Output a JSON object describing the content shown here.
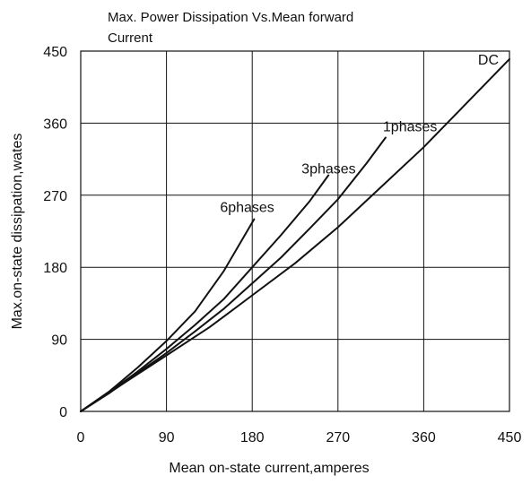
{
  "chart_data": {
    "type": "line",
    "title_lines": [
      "Max. Power Dissipation Vs.Mean forward",
      "Current"
    ],
    "xlabel": "Mean on-state current,amperes",
    "ylabel": "Max.on-state dissipation,wates",
    "xlim": [
      0,
      450
    ],
    "ylim": [
      0,
      450
    ],
    "x_ticks": [
      0,
      90,
      180,
      270,
      360,
      450
    ],
    "y_ticks": [
      0,
      90,
      180,
      270,
      360,
      450
    ],
    "grid": true,
    "colors": {
      "line": "#111111",
      "grid": "#111111"
    },
    "series": [
      {
        "name": "6phases",
        "points": [
          [
            0,
            0
          ],
          [
            30,
            25
          ],
          [
            60,
            55
          ],
          [
            90,
            88
          ],
          [
            120,
            125
          ],
          [
            150,
            175
          ],
          [
            182,
            240
          ]
        ]
      },
      {
        "name": "3phases",
        "points": [
          [
            0,
            0
          ],
          [
            30,
            24
          ],
          [
            60,
            50
          ],
          [
            90,
            78
          ],
          [
            120,
            108
          ],
          [
            150,
            140
          ],
          [
            180,
            180
          ],
          [
            210,
            220
          ],
          [
            240,
            262
          ],
          [
            260,
            295
          ]
        ]
      },
      {
        "name": "1phases",
        "points": [
          [
            0,
            0
          ],
          [
            30,
            23
          ],
          [
            60,
            48
          ],
          [
            90,
            73
          ],
          [
            120,
            100
          ],
          [
            150,
            128
          ],
          [
            180,
            160
          ],
          [
            210,
            192
          ],
          [
            240,
            228
          ],
          [
            270,
            265
          ],
          [
            300,
            310
          ],
          [
            320,
            342
          ]
        ]
      },
      {
        "name": "DC",
        "points": [
          [
            0,
            0
          ],
          [
            45,
            35
          ],
          [
            90,
            70
          ],
          [
            135,
            105
          ],
          [
            180,
            145
          ],
          [
            225,
            185
          ],
          [
            270,
            230
          ],
          [
            315,
            280
          ],
          [
            360,
            330
          ],
          [
            405,
            385
          ],
          [
            450,
            440
          ]
        ]
      }
    ]
  }
}
